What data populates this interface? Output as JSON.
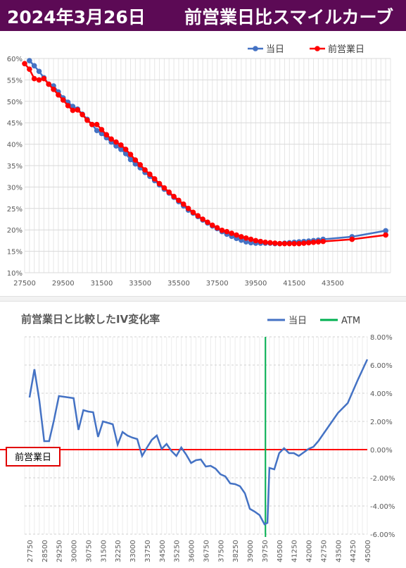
{
  "header": {
    "date": "2024年3月26日",
    "title": "前営業日比スマイルカーブ"
  },
  "tag_label": "前営業日",
  "chart_data": [
    {
      "type": "line",
      "title": "",
      "legend": "top-right",
      "xlim": [
        27500,
        46500
      ],
      "ylim": [
        10,
        60
      ],
      "x_ticks": [
        "27500",
        "29500",
        "31500",
        "33500",
        "35500",
        "37500",
        "39500",
        "41500",
        "43500"
      ],
      "y_ticks": [
        "10%",
        "15%",
        "20%",
        "25%",
        "30%",
        "35%",
        "40%",
        "45%",
        "50%",
        "55%",
        "60%"
      ],
      "series": [
        {
          "name": "当日",
          "color": "#4472c4",
          "x": [
            27750,
            28000,
            28250,
            28500,
            28750,
            29000,
            29250,
            29500,
            29750,
            30000,
            30250,
            30500,
            30750,
            31000,
            31250,
            31500,
            31750,
            32000,
            32250,
            32500,
            32750,
            33000,
            33250,
            33500,
            33750,
            34000,
            34250,
            34500,
            34750,
            35000,
            35250,
            35500,
            35750,
            36000,
            36250,
            36500,
            36750,
            37000,
            37250,
            37500,
            37750,
            38000,
            38250,
            38500,
            38750,
            39000,
            39250,
            39500,
            39750,
            40000,
            40250,
            40500,
            40750,
            41000,
            41250,
            41500,
            41750,
            42000,
            42250,
            42500,
            42750,
            43000,
            44500,
            46250
          ],
          "y": [
            59.5,
            58.3,
            57.0,
            55.5,
            54.0,
            53.6,
            52.2,
            50.8,
            49.8,
            48.8,
            48.2,
            47.0,
            45.8,
            44.6,
            43.2,
            42.5,
            41.5,
            40.5,
            39.6,
            38.8,
            37.8,
            36.4,
            35.4,
            34.5,
            33.4,
            32.5,
            31.5,
            30.5,
            29.5,
            28.6,
            27.6,
            26.6,
            25.6,
            24.6,
            23.9,
            23.1,
            22.3,
            21.6,
            20.9,
            20.3,
            19.6,
            19.0,
            18.5,
            18.0,
            17.6,
            17.2,
            17.0,
            16.9,
            16.9,
            16.9,
            16.9,
            16.8,
            16.8,
            16.9,
            17.0,
            17.1,
            17.2,
            17.3,
            17.4,
            17.5,
            17.6,
            17.8,
            18.4,
            19.8
          ]
        },
        {
          "name": "前営業日",
          "color": "#ff0000",
          "x": [
            27500,
            27750,
            28000,
            28250,
            28500,
            28750,
            29000,
            29250,
            29500,
            29750,
            30000,
            30250,
            30500,
            30750,
            31000,
            31250,
            31500,
            31750,
            32000,
            32250,
            32500,
            32750,
            33000,
            33250,
            33500,
            33750,
            34000,
            34250,
            34500,
            34750,
            35000,
            35250,
            35500,
            35750,
            36000,
            36250,
            36500,
            36750,
            37000,
            37250,
            37500,
            37750,
            38000,
            38250,
            38500,
            38750,
            39000,
            39250,
            39500,
            39750,
            40000,
            40250,
            40500,
            40750,
            41000,
            41250,
            41500,
            41750,
            42000,
            42250,
            42500,
            42750,
            43000,
            44500,
            46250
          ],
          "y": [
            58.8,
            57.5,
            55.3,
            55.0,
            55.3,
            54.0,
            52.8,
            51.5,
            50.3,
            49.0,
            47.9,
            48.0,
            46.9,
            45.6,
            44.6,
            44.6,
            43.4,
            42.2,
            41.2,
            40.5,
            39.8,
            38.8,
            37.6,
            36.3,
            35.2,
            34.0,
            33.0,
            31.9,
            30.8,
            29.8,
            28.8,
            27.8,
            26.9,
            26.0,
            25.0,
            24.1,
            23.3,
            22.5,
            21.8,
            21.1,
            20.5,
            19.9,
            19.6,
            19.2,
            18.8,
            18.4,
            18.1,
            17.8,
            17.5,
            17.3,
            17.1,
            17.0,
            16.9,
            16.8,
            16.8,
            16.8,
            16.8,
            16.8,
            16.9,
            17.0,
            17.1,
            17.2,
            17.3,
            17.8,
            18.8
          ]
        }
      ]
    },
    {
      "type": "line",
      "title": "前営業日と比較したIV変化率",
      "legend": "top-right",
      "xlim": [
        27500,
        45000
      ],
      "ylim": [
        -6,
        8
      ],
      "y_ticks": [
        "8.00%",
        "6.00%",
        "4.00%",
        "2.00%",
        "0.00%",
        "-2.00%",
        "-4.00%",
        "-6.00%"
      ],
      "x_ticks": [
        "27750",
        "28500",
        "29250",
        "30000",
        "30750",
        "31500",
        "32250",
        "33000",
        "33750",
        "34500",
        "35250",
        "36000",
        "36750",
        "37500",
        "38250",
        "39000",
        "39750",
        "40500",
        "41250",
        "42000",
        "42750",
        "43500",
        "44250",
        "45000"
      ],
      "reference": {
        "zero_color": "#ff0000",
        "atm_x": 39800
      },
      "series": [
        {
          "name": "当日",
          "color": "#4472c4",
          "x": [
            27750,
            28000,
            28250,
            28500,
            28750,
            29000,
            29250,
            29500,
            29750,
            30000,
            30250,
            30500,
            30750,
            31000,
            31250,
            31500,
            31750,
            32000,
            32250,
            32500,
            32750,
            33000,
            33250,
            33500,
            33750,
            34000,
            34250,
            34500,
            34750,
            35000,
            35250,
            35500,
            35750,
            36000,
            36250,
            36500,
            36750,
            37000,
            37250,
            37500,
            37750,
            38000,
            38250,
            38500,
            38750,
            39000,
            39250,
            39500,
            39750,
            39900,
            40000,
            40250,
            40500,
            40750,
            41000,
            41250,
            41500,
            41750,
            42000,
            42250,
            42500,
            42750,
            43000,
            43500,
            44000,
            44500,
            45000
          ],
          "y": [
            3.7,
            5.7,
            3.5,
            0.6,
            0.6,
            2.1,
            3.8,
            3.75,
            3.7,
            3.65,
            1.4,
            2.8,
            2.7,
            2.65,
            0.9,
            2.0,
            1.9,
            1.8,
            0.35,
            1.25,
            1.0,
            0.85,
            0.75,
            -0.45,
            0.15,
            0.7,
            1.0,
            0.05,
            0.4,
            -0.1,
            -0.45,
            0.15,
            -0.35,
            -0.95,
            -0.75,
            -0.7,
            -1.2,
            -1.15,
            -1.35,
            -1.75,
            -1.9,
            -2.4,
            -2.45,
            -2.6,
            -3.1,
            -4.2,
            -4.4,
            -4.65,
            -5.3,
            -5.2,
            -1.3,
            -1.4,
            -0.25,
            0.1,
            -0.25,
            -0.25,
            -0.45,
            -0.2,
            0.05,
            0.2,
            0.6,
            1.1,
            1.6,
            2.6,
            3.3,
            4.9,
            6.4
          ]
        },
        {
          "name": "ATM",
          "color": "#00b050"
        }
      ]
    }
  ]
}
